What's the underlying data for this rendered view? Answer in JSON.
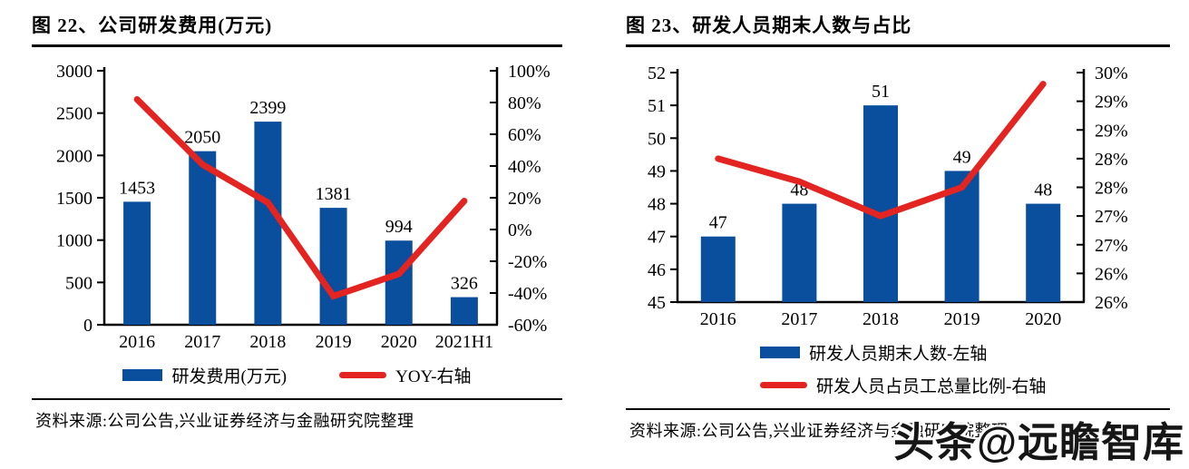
{
  "colors": {
    "bar": "#0A4F9D",
    "line": "#E32421",
    "axis": "#000000",
    "text": "#000000"
  },
  "watermark": "头条@远瞻智库",
  "charts": [
    {
      "title": "图 22、公司研发费用(万元)",
      "footer": "资料来源:公司公告,兴业证券经济与金融研究院整理",
      "legend": [
        {
          "type": "bar",
          "label": "研发费用(万元)"
        },
        {
          "type": "line",
          "label": "YOY-右轴"
        }
      ],
      "chart_data": {
        "type": "bar+line",
        "categories": [
          "2016",
          "2017",
          "2018",
          "2019",
          "2020",
          "2021H1"
        ],
        "series": [
          {
            "name": "研发费用(万元)",
            "type": "bar",
            "axis": "left",
            "values": [
              1453,
              2050,
              2399,
              1381,
              994,
              326
            ]
          },
          {
            "name": "YOY-右轴",
            "type": "line",
            "axis": "right",
            "values": [
              82,
              41,
              17,
              -42,
              -28,
              18
            ]
          }
        ],
        "bar_value_labels": [
          "1453",
          "2050",
          "2399",
          "1381",
          "994",
          "326"
        ],
        "left_axis": {
          "min": 0,
          "max": 3000,
          "tick_labels": [
            "3000",
            "2500",
            "2000",
            "1500",
            "1000",
            "500",
            "0"
          ]
        },
        "right_axis": {
          "min": -60,
          "max": 100,
          "tick_labels": [
            "100%",
            "80%",
            "60%",
            "40%",
            "20%",
            "0%",
            "-20%",
            "-40%",
            "-60%"
          ]
        },
        "grid": false,
        "legend_position": "bottom"
      }
    },
    {
      "title": "图 23、研发人员期末人数与占比",
      "footer": "资料来源:公司公告,兴业证券经济与金融研究院整理",
      "legend": [
        {
          "type": "bar",
          "label": "研发人员期末人数-左轴"
        },
        {
          "type": "line",
          "label": "研发人员占员工总量比例-右轴"
        }
      ],
      "chart_data": {
        "type": "bar+line",
        "categories": [
          "2016",
          "2017",
          "2018",
          "2019",
          "2020"
        ],
        "series": [
          {
            "name": "研发人员期末人数-左轴",
            "type": "bar",
            "axis": "left",
            "values": [
              47,
              48,
              51,
              49,
              48
            ]
          },
          {
            "name": "研发人员占员工总量比例-右轴",
            "type": "line",
            "axis": "right",
            "values": [
              28.5,
              28.1,
              27.5,
              28.0,
              29.8
            ]
          }
        ],
        "bar_value_labels": [
          "47",
          "48",
          "51",
          "49",
          "48"
        ],
        "left_axis": {
          "min": 45,
          "max": 52,
          "tick_labels": [
            "52",
            "51",
            "50",
            "49",
            "48",
            "47",
            "46",
            "45"
          ]
        },
        "right_axis": {
          "min": 26,
          "max": 30,
          "tick_labels": [
            "30%",
            "29%",
            "29%",
            "28%",
            "28%",
            "27%",
            "27%",
            "26%",
            "26%"
          ]
        },
        "grid": false,
        "legend_position": "bottom"
      }
    }
  ]
}
